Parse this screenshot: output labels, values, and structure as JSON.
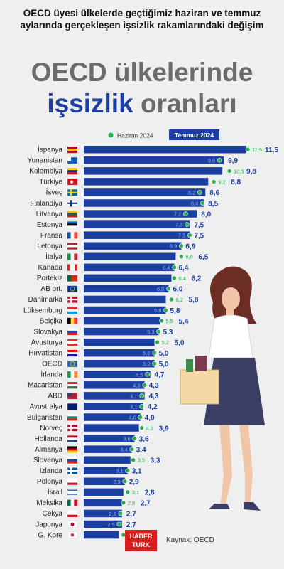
{
  "header": {
    "subtitle": "OECD üyesi ülkelerde geçtiğimiz haziran ve temmuz aylarında gerçekleşen işsizlik rakamlarındaki değişim",
    "title_line1": "OECD ülkelerinde",
    "title_blue": "işsizlik",
    "title_gray": "oranları"
  },
  "footer": {
    "logo_line1": "HABER",
    "logo_line2": "TURK",
    "source": "Kaynak: OECD"
  },
  "colors": {
    "bar": "#1a3fa0",
    "june_dot": "#22b14c",
    "june_label": "#22b14c",
    "july_label": "#1a3fa0"
  },
  "chart_data": {
    "type": "bar",
    "orientation": "horizontal",
    "legend": {
      "june": "Haziran 2024",
      "july": "Temmuz 2024",
      "placement": "top"
    },
    "categories": [
      "İspanya",
      "Yunanistan",
      "Kolombiya",
      "Türkiye",
      "İsveç",
      "Finlandiya",
      "Litvanya",
      "Estonya",
      "Fransa",
      "Letonya",
      "İtalya",
      "Kanada",
      "Portekiz",
      "AB ort.",
      "Danimarka",
      "Lüksemburg",
      "Belçika",
      "Slovakya",
      "Avusturya",
      "Hırvatistan",
      "OECD",
      "İrlanda",
      "Macaristan",
      "ABD",
      "Avustralya",
      "Bulgaristan",
      "Norveç",
      "Hollanda",
      "Almanya",
      "Slovenya",
      "İzlanda",
      "Polonya",
      "İsrail",
      "Meksika",
      "Çekya",
      "Japonya",
      "G. Kore"
    ],
    "series": [
      {
        "name": "Temmuz 2024",
        "values": [
          11.5,
          9.9,
          9.8,
          8.8,
          8.6,
          8.5,
          8.0,
          7.5,
          7.5,
          6.9,
          6.5,
          6.4,
          6.2,
          6.0,
          5.8,
          5.8,
          5.4,
          5.3,
          5.0,
          5.0,
          5.0,
          4.7,
          4.3,
          4.3,
          4.2,
          4.0,
          3.9,
          3.6,
          3.4,
          3.3,
          3.1,
          2.9,
          2.8,
          2.7,
          2.7,
          2.7,
          2.5
        ],
        "labels": [
          "11,5",
          "9,9",
          "9,8",
          "8,8",
          "8,6",
          "8,5",
          "8,0",
          "7,5",
          "7,5",
          "6,9",
          "6,5",
          "6,4",
          "6,2",
          "6,0",
          "5,8",
          "5,8",
          "5,4",
          "5,3",
          "5,0",
          "5,0",
          "5,0",
          "4,7",
          "4,3",
          "4,3",
          "4,2",
          "4,0",
          "3,9",
          "3,6",
          "3,4",
          "3,3",
          "3,1",
          "2,9",
          "2,8",
          "2,7",
          "2,7",
          "2,7",
          "2,5"
        ]
      },
      {
        "name": "Haziran 2024",
        "values": [
          11.6,
          9.6,
          10.3,
          9.2,
          8.2,
          8.4,
          7.2,
          7.3,
          7.5,
          6.9,
          6.9,
          6.4,
          6.4,
          6.0,
          6.2,
          5.8,
          5.5,
          5.3,
          5.2,
          5.0,
          5.0,
          4.5,
          4.3,
          4.1,
          4.1,
          4.0,
          4.1,
          3.6,
          3.4,
          3.5,
          3.1,
          2.9,
          3.1,
          2.8,
          2.6,
          2.5,
          2.8
        ],
        "labels": [
          "11,6",
          "9,6",
          "10,3",
          "9,2",
          "8,2",
          "8,4",
          "7,2",
          "7,3",
          "7,5",
          "6,9",
          "6,9",
          "6,4",
          "6,4",
          "6,0",
          "6,2",
          "5,8",
          "5,5",
          "5,3",
          "5,2",
          "5,0",
          "5,0",
          "4,5",
          "4,3",
          "4,1",
          "4,1",
          "4,0",
          "4,1",
          "3,6",
          "3,4",
          "3,5",
          "3,1",
          "2,9",
          "3,1",
          "2,8",
          "2,6",
          "2,5",
          "2,8"
        ]
      }
    ],
    "flags": [
      "es",
      "gr",
      "co",
      "tr",
      "se",
      "fi",
      "lt",
      "ee",
      "fr",
      "lv",
      "it",
      "ca",
      "pt",
      "eu",
      "dk",
      "lu",
      "be",
      "sk",
      "at",
      "hr",
      "oecd",
      "ie",
      "hu",
      "us",
      "au",
      "bg",
      "no",
      "nl",
      "de",
      "si",
      "is",
      "pl",
      "il",
      "mx",
      "cz",
      "jp",
      "kr"
    ],
    "xlim": [
      0,
      11.5
    ]
  }
}
